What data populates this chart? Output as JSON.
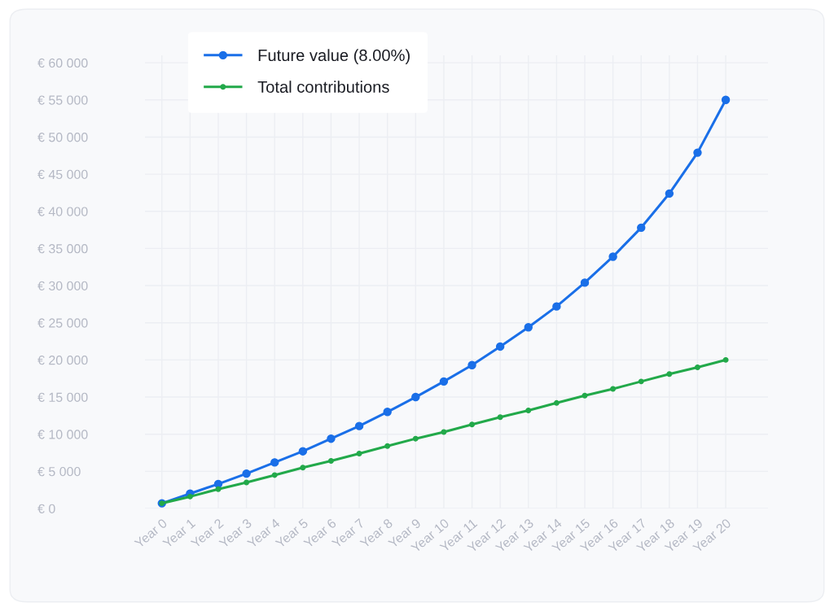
{
  "chart_data": {
    "type": "line",
    "categories": [
      "Year 0",
      "Year 1",
      "Year 2",
      "Year 3",
      "Year 4",
      "Year 5",
      "Year 6",
      "Year 7",
      "Year 8",
      "Year 9",
      "Year 10",
      "Year 11",
      "Year 12",
      "Year 13",
      "Year 14",
      "Year 15",
      "Year 16",
      "Year 17",
      "Year 18",
      "Year 19",
      "Year 20"
    ],
    "ylim": [
      0,
      61000
    ],
    "yticks": [
      {
        "value": 0,
        "label": "€ 0"
      },
      {
        "value": 5000,
        "label": "€ 5 000"
      },
      {
        "value": 10000,
        "label": "€ 10 000"
      },
      {
        "value": 15000,
        "label": "€ 15 000"
      },
      {
        "value": 20000,
        "label": "€ 20 000"
      },
      {
        "value": 25000,
        "label": "€ 25 000"
      },
      {
        "value": 30000,
        "label": "€ 30 000"
      },
      {
        "value": 35000,
        "label": "€ 35 000"
      },
      {
        "value": 40000,
        "label": "€ 40 000"
      },
      {
        "value": 45000,
        "label": "€ 45 000"
      },
      {
        "value": 50000,
        "label": "€ 50 000"
      },
      {
        "value": 55000,
        "label": "€ 55 000"
      },
      {
        "value": 60000,
        "label": "€ 60 000"
      }
    ],
    "series": [
      {
        "name": "Future value (8.00%)",
        "color": "#1a6fe8",
        "values": [
          700,
          2000,
          3300,
          4700,
          6200,
          7700,
          9400,
          11100,
          13000,
          15000,
          17100,
          19300,
          21800,
          24400,
          27200,
          30400,
          33900,
          37800,
          42400,
          47900,
          55000
        ]
      },
      {
        "name": "Total contributions",
        "color": "#22a94a",
        "values": [
          700,
          1600,
          2600,
          3500,
          4500,
          5500,
          6400,
          7400,
          8400,
          9400,
          10300,
          11300,
          12300,
          13200,
          14200,
          15200,
          16100,
          17100,
          18100,
          19000,
          20000
        ]
      }
    ],
    "marker": "circle",
    "line_style": "solid",
    "grid": true,
    "legend": "top left"
  }
}
